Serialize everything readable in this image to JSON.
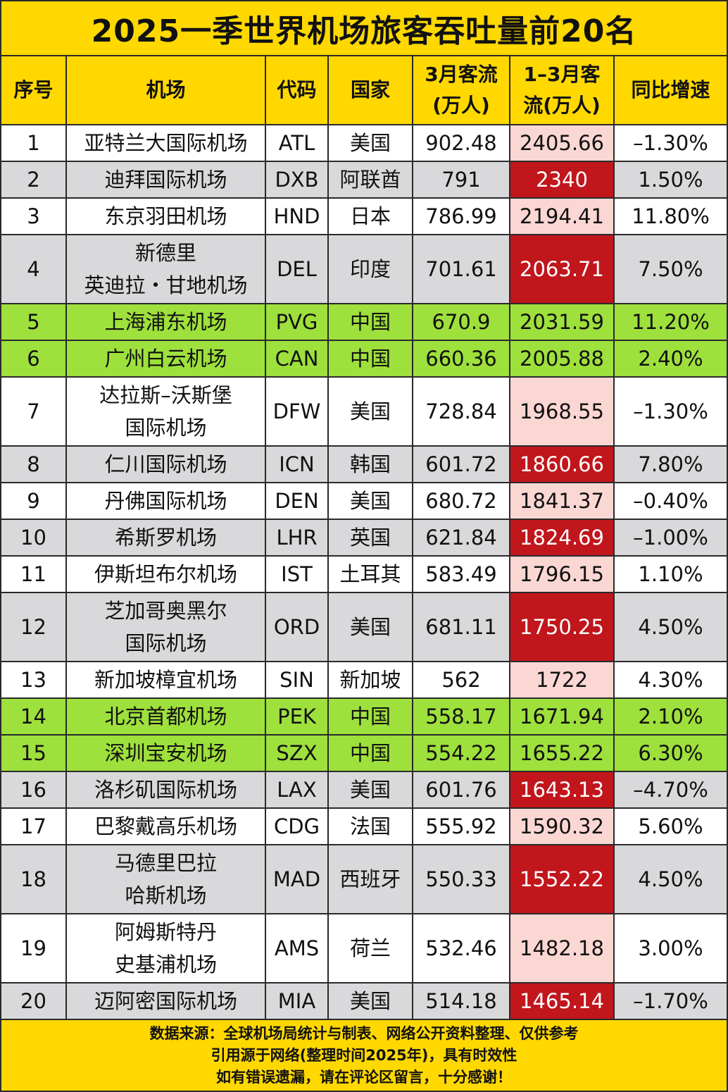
{
  "title": "2025一季世界机场旅客吞吐量前20名",
  "headers": [
    "序号",
    "机场",
    "代码",
    "国家",
    "3月客流\n(万人)",
    "1–3月客\n流(万人)",
    "同比增速"
  ],
  "colors": {
    "header": "#ffd800",
    "gray_row": "#d9d9db",
    "china_row": "#9ee03c",
    "pink_cell": "#fbd7d4",
    "red_cell": "#c0161c"
  },
  "rows": [
    {
      "rank": "1",
      "airport": [
        "亚特兰大国际机场"
      ],
      "code": "ATL",
      "country": "美国",
      "march": "902.48",
      "q1": "2405.66",
      "yoy": "–1.30%",
      "style": "w"
    },
    {
      "rank": "2",
      "airport": [
        "迪拜国际机场"
      ],
      "code": "DXB",
      "country": "阿联酋",
      "march": "791",
      "q1": "2340",
      "yoy": "1.50%",
      "style": "g"
    },
    {
      "rank": "3",
      "airport": [
        "东京羽田机场"
      ],
      "code": "HND",
      "country": "日本",
      "march": "786.99",
      "q1": "2194.41",
      "yoy": "11.80%",
      "style": "w"
    },
    {
      "rank": "4",
      "airport": [
        "新德里",
        "英迪拉・甘地机场"
      ],
      "code": "DEL",
      "country": "印度",
      "march": "701.61",
      "q1": "2063.71",
      "yoy": "7.50%",
      "style": "g"
    },
    {
      "rank": "5",
      "airport": [
        "上海浦东机场"
      ],
      "code": "PVG",
      "country": "中国",
      "march": "670.9",
      "q1": "2031.59",
      "yoy": "11.20%",
      "style": "c"
    },
    {
      "rank": "6",
      "airport": [
        "广州白云机场"
      ],
      "code": "CAN",
      "country": "中国",
      "march": "660.36",
      "q1": "2005.88",
      "yoy": "2.40%",
      "style": "c"
    },
    {
      "rank": "7",
      "airport": [
        "达拉斯–沃斯堡",
        "国际机场"
      ],
      "code": "DFW",
      "country": "美国",
      "march": "728.84",
      "q1": "1968.55",
      "yoy": "–1.30%",
      "style": "w"
    },
    {
      "rank": "8",
      "airport": [
        "仁川国际机场"
      ],
      "code": "ICN",
      "country": "韩国",
      "march": "601.72",
      "q1": "1860.66",
      "yoy": "7.80%",
      "style": "g"
    },
    {
      "rank": "9",
      "airport": [
        "丹佛国际机场"
      ],
      "code": "DEN",
      "country": "美国",
      "march": "680.72",
      "q1": "1841.37",
      "yoy": "–0.40%",
      "style": "w"
    },
    {
      "rank": "10",
      "airport": [
        "希斯罗机场"
      ],
      "code": "LHR",
      "country": "英国",
      "march": "621.84",
      "q1": "1824.69",
      "yoy": "–1.00%",
      "style": "g"
    },
    {
      "rank": "11",
      "airport": [
        "伊斯坦布尔机场"
      ],
      "code": "IST",
      "country": "土耳其",
      "march": "583.49",
      "q1": "1796.15",
      "yoy": "1.10%",
      "style": "w"
    },
    {
      "rank": "12",
      "airport": [
        "芝加哥奥黑尔",
        "国际机场"
      ],
      "code": "ORD",
      "country": "美国",
      "march": "681.11",
      "q1": "1750.25",
      "yoy": "4.50%",
      "style": "g"
    },
    {
      "rank": "13",
      "airport": [
        "新加坡樟宜机场"
      ],
      "code": "SIN",
      "country": "新加坡",
      "march": "562",
      "q1": "1722",
      "yoy": "4.30%",
      "style": "w"
    },
    {
      "rank": "14",
      "airport": [
        "北京首都机场"
      ],
      "code": "PEK",
      "country": "中国",
      "march": "558.17",
      "q1": "1671.94",
      "yoy": "2.10%",
      "style": "c"
    },
    {
      "rank": "15",
      "airport": [
        "深圳宝安机场"
      ],
      "code": "SZX",
      "country": "中国",
      "march": "554.22",
      "q1": "1655.22",
      "yoy": "6.30%",
      "style": "c"
    },
    {
      "rank": "16",
      "airport": [
        "洛杉矶国际机场"
      ],
      "code": "LAX",
      "country": "美国",
      "march": "601.76",
      "q1": "1643.13",
      "yoy": "–4.70%",
      "style": "g"
    },
    {
      "rank": "17",
      "airport": [
        "巴黎戴高乐机场"
      ],
      "code": "CDG",
      "country": "法国",
      "march": "555.92",
      "q1": "1590.32",
      "yoy": "5.60%",
      "style": "w"
    },
    {
      "rank": "18",
      "airport": [
        "马德里巴拉",
        "哈斯机场"
      ],
      "code": "MAD",
      "country": "西班牙",
      "march": "550.33",
      "q1": "1552.22",
      "yoy": "4.50%",
      "style": "g"
    },
    {
      "rank": "19",
      "airport": [
        "阿姆斯特丹",
        "史基浦机场"
      ],
      "code": "AMS",
      "country": "荷兰",
      "march": "532.46",
      "q1": "1482.18",
      "yoy": "3.00%",
      "style": "w"
    },
    {
      "rank": "20",
      "airport": [
        "迈阿密国际机场"
      ],
      "code": "MIA",
      "country": "美国",
      "march": "514.18",
      "q1": "1465.14",
      "yoy": "–1.70%",
      "style": "g"
    }
  ],
  "footer": [
    "数据来源：全球机场局统计与制表、网络公开资料整理、仅供参考",
    "引用源于网络(整理时间2025年)，具有时效性",
    "如有错误遗漏，请在评论区留言，十分感谢！"
  ]
}
